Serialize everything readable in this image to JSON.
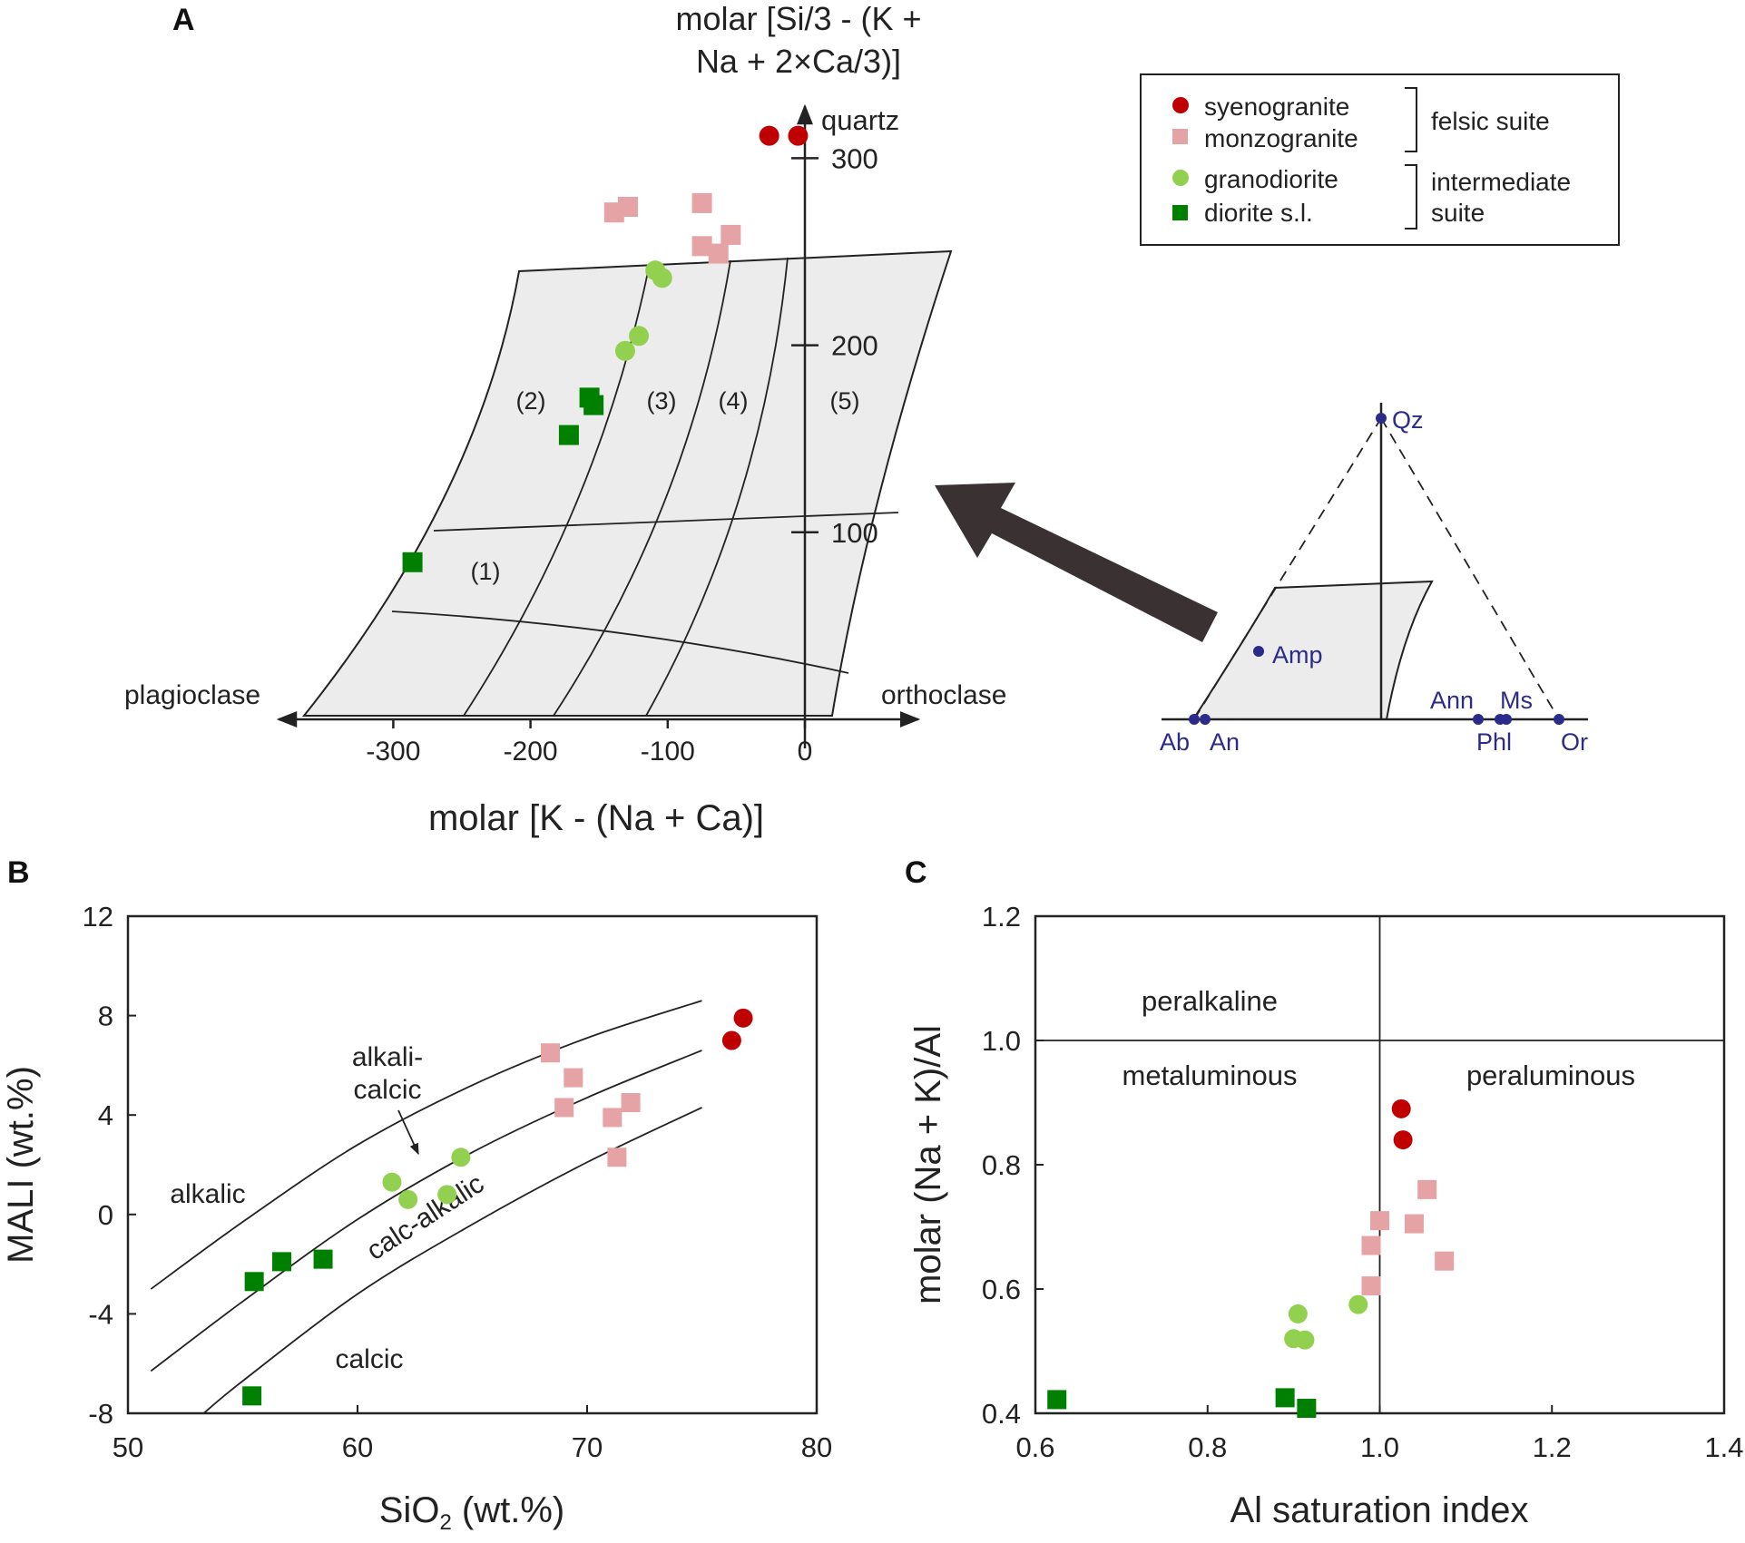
{
  "panel_labels": {
    "a": "A",
    "b": "B",
    "c": "C"
  },
  "colors": {
    "syenogranite": "#c00000",
    "monzogranite": "#e6a3a5",
    "granodiorite": "#92d050",
    "diorite": "#008000",
    "field_fill": "#ececec",
    "inset_blue": "#2b2b8a",
    "axis": "#222222"
  },
  "legend": {
    "items": [
      {
        "label": "syenogranite",
        "marker": "circle",
        "color": "#c00000"
      },
      {
        "label": "monzogranite",
        "marker": "square",
        "color": "#e6a3a5"
      },
      {
        "label": "granodiorite",
        "marker": "circle",
        "color": "#92d050"
      },
      {
        "label": "diorite s.l.",
        "marker": "square",
        "color": "#008000"
      }
    ],
    "group_felsic": "felsic suite",
    "group_intermediate_1": "intermediate",
    "group_intermediate_2": "suite"
  },
  "chart_data": [
    {
      "panel": "A",
      "type": "scatter",
      "title_line1": "molar [Si/3 - (K +",
      "title_line2": "Na + 2×Ca/3)]",
      "xlabel": "molar [K - (Na + Ca)]",
      "x_ticks": [
        -300,
        -200,
        -100,
        0
      ],
      "x_tick_labels": [
        "-300",
        "-200",
        "-100",
        "0"
      ],
      "y_ticks": [
        100,
        200,
        300
      ],
      "y_tick_labels": [
        "100",
        "200",
        "300"
      ],
      "axis_end_labels": {
        "left": "plagioclase",
        "right": "orthoclase",
        "top": "quartz"
      },
      "field_labels": [
        "(1)",
        "(2)",
        "(3)",
        "(4)",
        "(5)"
      ],
      "series": [
        {
          "name": "syenogranite",
          "marker": "circle",
          "points": [
            [
              -26,
              312
            ],
            [
              -5,
              312
            ]
          ]
        },
        {
          "name": "monzogranite",
          "marker": "square",
          "points": [
            [
              -139,
              271
            ],
            [
              -129,
              274
            ],
            [
              -75,
              276
            ],
            [
              -75,
              253
            ],
            [
              -63,
              249
            ],
            [
              -54,
              259
            ]
          ]
        },
        {
          "name": "granodiorite",
          "marker": "circle",
          "points": [
            [
              -109,
              240
            ],
            [
              -104,
              236
            ],
            [
              -121,
              205
            ],
            [
              -131,
              197
            ]
          ]
        },
        {
          "name": "diorite s.l.",
          "marker": "square",
          "points": [
            [
              -157,
              172
            ],
            [
              -154,
              168
            ],
            [
              -172,
              152
            ],
            [
              -286,
              84
            ]
          ]
        }
      ],
      "inset": {
        "labels": {
          "qz": "Qz",
          "amp": "Amp",
          "ab": "Ab",
          "an": "An",
          "ann": "Ann",
          "ms": "Ms",
          "phl": "Phl",
          "or": "Or"
        }
      }
    },
    {
      "panel": "B",
      "type": "scatter",
      "xlabel": "SiO₂ (wt.%)",
      "xlabel_main": "SiO",
      "xlabel_sub": "2",
      "xlabel_rest": " (wt.%)",
      "ylabel": "MALI (wt.%)",
      "xlim": [
        50,
        80
      ],
      "ylim": [
        -8,
        12
      ],
      "x_ticks": [
        50,
        60,
        70,
        80
      ],
      "x_tick_labels": [
        "50",
        "60",
        "70",
        "80"
      ],
      "y_ticks": [
        12,
        8,
        4,
        0,
        -4,
        -8
      ],
      "y_tick_labels": [
        "12",
        "8",
        "4",
        "0",
        "-4",
        "-8"
      ],
      "field_labels": {
        "alkalic": "alkalic",
        "alkali_calcic_1": "alkali-",
        "alkali_calcic_2": "calcic",
        "calc_alkalic": "calc-alkalic",
        "calcic": "calcic"
      },
      "series": [
        {
          "name": "syenogranite",
          "marker": "circle",
          "points": [
            [
              76.3,
              7.0
            ],
            [
              76.8,
              7.9
            ]
          ]
        },
        {
          "name": "monzogranite",
          "marker": "square",
          "points": [
            [
              68.4,
              6.5
            ],
            [
              69.4,
              5.5
            ],
            [
              69.0,
              4.3
            ],
            [
              71.1,
              3.9
            ],
            [
              71.9,
              4.5
            ],
            [
              71.3,
              2.3
            ]
          ]
        },
        {
          "name": "granodiorite",
          "marker": "circle",
          "points": [
            [
              61.5,
              1.3
            ],
            [
              62.2,
              0.6
            ],
            [
              63.9,
              0.8
            ],
            [
              64.5,
              2.3
            ]
          ]
        },
        {
          "name": "diorite s.l.",
          "marker": "square",
          "points": [
            [
              55.5,
              -2.7
            ],
            [
              56.7,
              -1.9
            ],
            [
              58.5,
              -1.8
            ],
            [
              55.4,
              -7.3
            ]
          ]
        }
      ],
      "boundaries": [
        {
          "name": "alkalic / alkali-calcic",
          "points": [
            [
              51,
              -3.0
            ],
            [
              55,
              -0.3
            ],
            [
              60,
              2.8
            ],
            [
              65,
              5.2
            ],
            [
              70,
              7.1
            ],
            [
              75,
              8.6
            ]
          ]
        },
        {
          "name": "alkali-calcic / calc-alkalic",
          "points": [
            [
              51,
              -6.3
            ],
            [
              55,
              -3.5
            ],
            [
              60,
              -0.2
            ],
            [
              65,
              2.5
            ],
            [
              70,
              4.7
            ],
            [
              75,
              6.6
            ]
          ]
        },
        {
          "name": "calc-alkalic / calcic",
          "points": [
            [
              53.3,
              -8
            ],
            [
              55,
              -6.7
            ],
            [
              60,
              -3.2
            ],
            [
              65,
              -0.4
            ],
            [
              70,
              2.1
            ],
            [
              75,
              4.3
            ]
          ]
        }
      ]
    },
    {
      "panel": "C",
      "type": "scatter",
      "xlabel": "Al saturation index",
      "ylabel": "molar (Na + K)/Al",
      "xlim": [
        0.6,
        1.4
      ],
      "ylim": [
        0.4,
        1.2
      ],
      "x_ticks": [
        0.6,
        0.8,
        1.0,
        1.2,
        1.4
      ],
      "x_tick_labels": [
        "0.6",
        "0.8",
        "1.0",
        "1.2",
        "1.4"
      ],
      "y_ticks": [
        1.2,
        1.0,
        0.8,
        0.6,
        0.4
      ],
      "y_tick_labels": [
        "1.2",
        "1.0",
        "0.8",
        "0.6",
        "0.4"
      ],
      "field_labels": {
        "peralkaline": "peralkaline",
        "metaluminous": "metaluminous",
        "peraluminous": "peraluminous"
      },
      "reference_lines": {
        "vertical_x": 1.0,
        "horizontal_y": 1.0
      },
      "series": [
        {
          "name": "syenogranite",
          "marker": "circle",
          "points": [
            [
              1.025,
              0.89
            ],
            [
              1.027,
              0.84
            ]
          ]
        },
        {
          "name": "monzogranite",
          "marker": "square",
          "points": [
            [
              1.055,
              0.76
            ],
            [
              1.0,
              0.71
            ],
            [
              1.04,
              0.705
            ],
            [
              0.99,
              0.67
            ],
            [
              1.075,
              0.645
            ],
            [
              0.99,
              0.605
            ]
          ]
        },
        {
          "name": "granodiorite",
          "marker": "circle",
          "points": [
            [
              0.905,
              0.56
            ],
            [
              0.975,
              0.575
            ],
            [
              0.9,
              0.52
            ],
            [
              0.913,
              0.518
            ]
          ]
        },
        {
          "name": "diorite s.l.",
          "marker": "square",
          "points": [
            [
              0.625,
              0.422
            ],
            [
              0.89,
              0.425
            ],
            [
              0.915,
              0.408
            ]
          ]
        }
      ]
    }
  ]
}
